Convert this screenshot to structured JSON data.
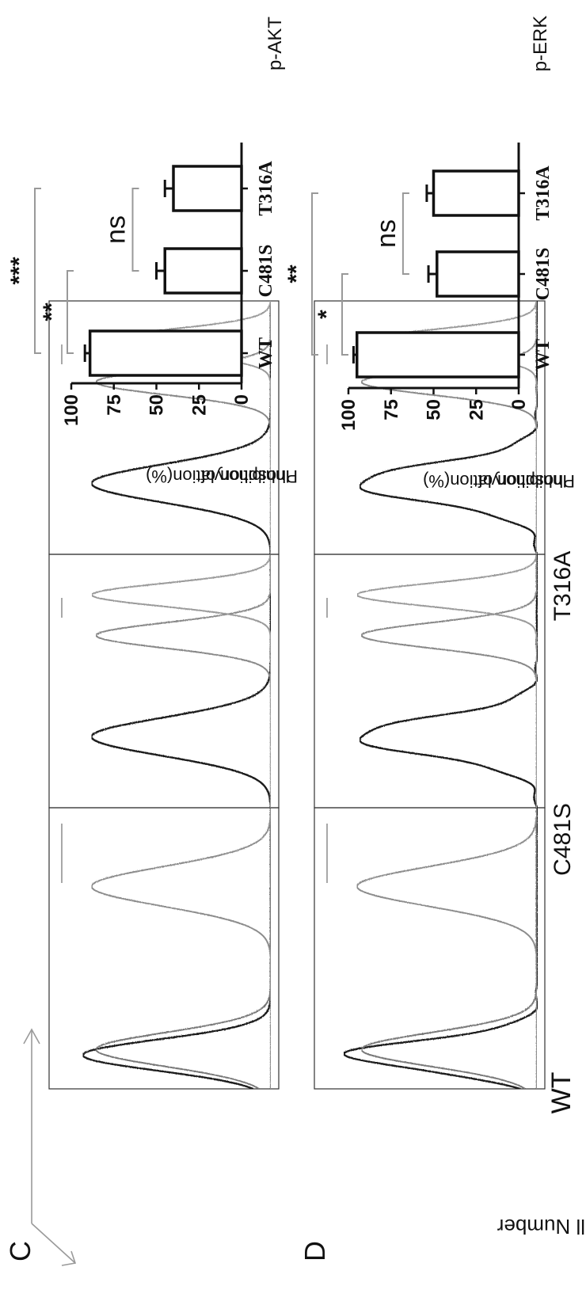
{
  "panels": {
    "c_letter": "C",
    "d_letter": "D",
    "c_title": "p-AKT",
    "d_title": "p-ERK"
  },
  "histograms": {
    "y_axis_label": "Cell Number",
    "columns": [
      "WT",
      "C481S",
      "T316A"
    ]
  },
  "chart_data": [
    {
      "type": "bar",
      "panel": "C",
      "title": "p-AKT",
      "xlabel": "",
      "ylabel": "Inhibition of Phosphorylation(%)",
      "categories": [
        "WT",
        "C481S",
        "T316A"
      ],
      "values": [
        89,
        45,
        40
      ],
      "errors": [
        3,
        5,
        5
      ],
      "ylim": [
        0,
        100
      ],
      "yticks": [
        "0",
        "25",
        "50",
        "75",
        "100"
      ],
      "significance": [
        {
          "from": "WT",
          "to": "C481S",
          "label": "**"
        },
        {
          "from": "WT",
          "to": "T316A",
          "label": "***"
        },
        {
          "from": "C481S",
          "to": "T316A",
          "label": "ns"
        }
      ],
      "color": "#111111"
    },
    {
      "type": "bar",
      "panel": "D",
      "title": "p-ERK",
      "xlabel": "",
      "ylabel": "Inhibition of Phosphorylation(%)",
      "categories": [
        "WT",
        "C481S",
        "T316A"
      ],
      "values": [
        95,
        48,
        50
      ],
      "errors": [
        2,
        5,
        4
      ],
      "ylim": [
        0,
        100
      ],
      "yticks": [
        "0",
        "25",
        "50",
        "75",
        "100"
      ],
      "significance": [
        {
          "from": "WT",
          "to": "C481S",
          "label": "*"
        },
        {
          "from": "WT",
          "to": "T316A",
          "label": "**"
        },
        {
          "from": "C481S",
          "to": "T316A",
          "label": "ns"
        }
      ],
      "color": "#111111"
    }
  ]
}
